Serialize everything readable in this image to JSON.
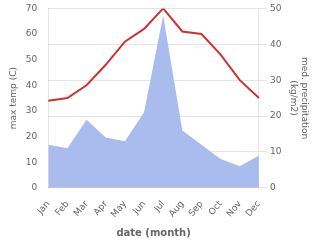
{
  "chart_data": {
    "type": "line",
    "categories": [
      "Jan",
      "Feb",
      "Mar",
      "Apr",
      "May",
      "Jun",
      "Jul",
      "Aug",
      "Sep",
      "Oct",
      "Nov",
      "Dec"
    ],
    "series": [
      {
        "type": "area",
        "axis": "y2",
        "color": "#aabbee",
        "values": [
          12,
          11,
          19,
          14,
          13,
          21,
          48,
          16,
          12,
          8,
          6,
          9
        ]
      },
      {
        "type": "line",
        "color": "#cc3333",
        "values": [
          34,
          35,
          40,
          48,
          57,
          62,
          70,
          61,
          60,
          52,
          42,
          35
        ]
      }
    ],
    "xlabel": "date (month)",
    "ylabel": "max temp (C)",
    "y2label": "med. precipitation\n(kg/m2)",
    "ylim": [
      0,
      70
    ],
    "yticks": [
      0,
      10,
      20,
      30,
      40,
      50,
      60,
      70
    ],
    "y2lim": [
      0,
      50
    ],
    "y2ticks": [
      0,
      10,
      20,
      30,
      40,
      50
    ],
    "grid": true
  }
}
